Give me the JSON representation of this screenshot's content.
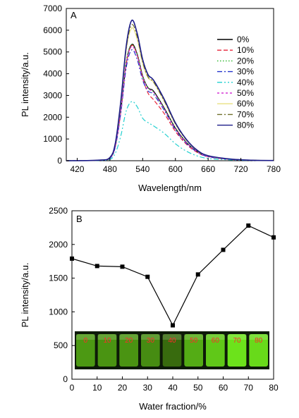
{
  "chart_data": [
    {
      "type": "line",
      "panel_label": "A",
      "xlabel": "Wavelength/nm",
      "ylabel": "PL intensity/a.u.",
      "xlim": [
        400,
        780
      ],
      "ylim": [
        0,
        7000
      ],
      "xticks": [
        420,
        480,
        540,
        600,
        660,
        720,
        780
      ],
      "yticks": [
        0,
        1000,
        2000,
        3000,
        4000,
        5000,
        6000,
        7000
      ],
      "legend_position": "right",
      "grid": false,
      "x": [
        400,
        460,
        480,
        490,
        500,
        510,
        520,
        530,
        540,
        550,
        560,
        580,
        600,
        620,
        640,
        660,
        700,
        740,
        780
      ],
      "series": [
        {
          "name": "0%",
          "color": "#000000",
          "dash": "",
          "values": [
            0,
            20,
            120,
            700,
            2300,
            4500,
            5350,
            4900,
            3900,
            3350,
            3200,
            2400,
            1500,
            850,
            420,
            200,
            70,
            20,
            10
          ]
        },
        {
          "name": "10%",
          "color": "#e8253a",
          "dash": "6,3",
          "values": [
            0,
            20,
            120,
            680,
            2250,
            4450,
            5300,
            4850,
            3800,
            3100,
            2800,
            2150,
            1350,
            760,
            380,
            180,
            60,
            18,
            8
          ]
        },
        {
          "name": "20%",
          "color": "#2ab72a",
          "dash": "1.5,2.5",
          "values": [
            0,
            20,
            120,
            700,
            2350,
            4600,
            5350,
            4880,
            3900,
            3350,
            3150,
            2380,
            1480,
            840,
            410,
            195,
            68,
            20,
            10
          ]
        },
        {
          "name": "30%",
          "color": "#2233cc",
          "dash": "7,3,2,3",
          "values": [
            0,
            20,
            110,
            650,
            2200,
            4300,
            5100,
            4650,
            3700,
            3200,
            3050,
            2300,
            1420,
            800,
            400,
            185,
            65,
            19,
            9
          ]
        },
        {
          "name": "40%",
          "color": "#22d0d0",
          "dash": "7,3,2,3,2,3",
          "values": [
            0,
            10,
            60,
            350,
            1150,
            2300,
            2720,
            2480,
            1950,
            1750,
            1600,
            1250,
            780,
            440,
            220,
            105,
            38,
            12,
            6
          ]
        },
        {
          "name": "50%",
          "color": "#d633d6",
          "dash": "3,3",
          "values": [
            0,
            20,
            120,
            690,
            2280,
            4500,
            5250,
            4800,
            3850,
            3300,
            3150,
            2350,
            1460,
            830,
            410,
            190,
            66,
            19,
            9
          ]
        },
        {
          "name": "60%",
          "color": "#e8e080",
          "dash": "",
          "values": [
            0,
            25,
            140,
            780,
            2600,
            5100,
            6100,
            5580,
            4450,
            3800,
            3600,
            2700,
            1680,
            950,
            470,
            220,
            75,
            22,
            10
          ]
        },
        {
          "name": "70%",
          "color": "#6f6f2a",
          "dash": "7,3,2,3",
          "values": [
            0,
            25,
            150,
            800,
            2700,
            5200,
            6250,
            5700,
            4550,
            3850,
            3620,
            2730,
            1700,
            960,
            475,
            225,
            76,
            22,
            10
          ]
        },
        {
          "name": "80%",
          "color": "#1a1a88",
          "dash": "",
          "values": [
            0,
            25,
            150,
            820,
            2750,
            5300,
            6450,
            5850,
            4650,
            3950,
            3700,
            2800,
            1740,
            980,
            480,
            230,
            78,
            22,
            10
          ]
        }
      ]
    },
    {
      "type": "line",
      "panel_label": "B",
      "xlabel": "Water fraction/%",
      "ylabel": "PL intensity/a.u.",
      "xlim": [
        0,
        80
      ],
      "ylim": [
        0,
        2500
      ],
      "xticks": [
        0,
        10,
        20,
        30,
        40,
        50,
        60,
        70,
        80
      ],
      "yticks": [
        0,
        500,
        1000,
        1500,
        2000,
        2500
      ],
      "grid": false,
      "x": [
        0,
        10,
        20,
        30,
        40,
        50,
        60,
        70,
        80
      ],
      "y": [
        1790,
        1680,
        1670,
        1520,
        800,
        1555,
        1920,
        2280,
        2105
      ],
      "inset_photo": {
        "description_labels": [
          "0",
          "10",
          "20",
          "30",
          "40",
          "50",
          "60",
          "70",
          "80"
        ],
        "glow_levels": [
          0.45,
          0.42,
          0.42,
          0.38,
          0.2,
          0.55,
          0.7,
          0.85,
          0.8
        ]
      }
    }
  ]
}
